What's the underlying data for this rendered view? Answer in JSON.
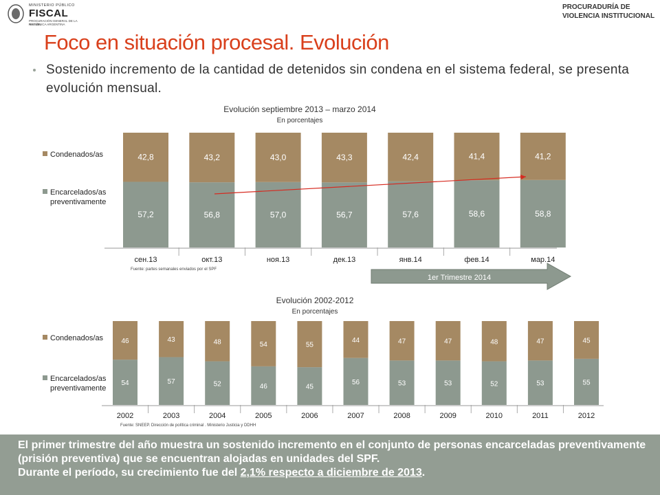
{
  "header": {
    "logo_small": "MINISTERIO PÚBLICO",
    "logo_big": "FISCAL",
    "logo_sub1": "PROCURACIÓN GENERAL DE LA NACIÓN",
    "logo_sub2": "REPÚBLICA ARGENTINA",
    "right_line1": "PROCURADURÍA DE",
    "right_line2": "VIOLENCIA INSTITUCIONAL"
  },
  "title": "Foco en situación procesal. Evolución",
  "bullet": "Sostenido incremento de la cantidad de detenidos sin condena en el sistema federal, se presenta evolución mensual.",
  "arrow_label": "1er Trimestre 2014",
  "source1": "Fuente: partes semanales enviados por el SPF",
  "source2": "Fuente: SNEEP. Dirección de política criminal . Ministerio Justicia y DDHH",
  "banner": {
    "line1": "El primer trimestre del año muestra un sostenido incremento en el conjunto de personas encarceladas preventivamente (prisión preventiva) que se encuentran alojadas en unidades del SPF.",
    "line2_pre": "Durante el período, su crecimiento fue del ",
    "line2_underlined": "2,1% respecto a diciembre de 2013",
    "line2_post": "."
  },
  "colors": {
    "title": "#d9401c",
    "condenados": "#a58963",
    "encarcelados": "#8d998f",
    "trend_line": "#d62a20",
    "arrow": "#8d998f",
    "banner": "#939d93"
  },
  "chart_data": [
    {
      "type": "bar",
      "stacked": true,
      "title": "Evolución septiembre 2013 – marzo 2014",
      "subtitle": "En porcentajes",
      "categories": [
        "сен.13",
        "окт.13",
        "ноя.13",
        "дек.13",
        "янв.14",
        "фев.14",
        "мар.14"
      ],
      "series": [
        {
          "name": "Encarcelados/as preventivamente",
          "values": [
            57.2,
            56.8,
            57.0,
            56.7,
            57.6,
            58.6,
            58.8
          ],
          "labels": [
            "57,2",
            "56,8",
            "57,0",
            "56,7",
            "57,6",
            "58,6",
            "58,8"
          ]
        },
        {
          "name": "Condenados/as",
          "values": [
            42.8,
            43.2,
            43.0,
            43.3,
            42.4,
            41.4,
            41.2
          ],
          "labels": [
            "42,8",
            "43,2",
            "43,0",
            "43,3",
            "42,4",
            "41,4",
            "41,2"
          ]
        }
      ],
      "trend_line": true,
      "legend": "left"
    },
    {
      "type": "bar",
      "stacked": true,
      "title": "Evolución 2002-2012",
      "subtitle": "En porcentajes",
      "categories": [
        "2002",
        "2003",
        "2004",
        "2005",
        "2006",
        "2007",
        "2008",
        "2009",
        "2010",
        "2011",
        "2012"
      ],
      "series": [
        {
          "name": "Encarcelados/as preventivamente",
          "values": [
            54,
            57,
            52,
            46,
            45,
            56,
            53,
            53,
            52,
            53,
            55
          ],
          "labels": [
            "54",
            "57",
            "52",
            "46",
            "45",
            "56",
            "53",
            "53",
            "52",
            "53",
            "55"
          ]
        },
        {
          "name": "Condenados/as",
          "values": [
            46,
            43,
            48,
            54,
            55,
            44,
            47,
            47,
            48,
            47,
            45
          ],
          "labels": [
            "46",
            "43",
            "48",
            "54",
            "55",
            "44",
            "47",
            "47",
            "48",
            "47",
            "45"
          ]
        }
      ],
      "legend": "left"
    }
  ]
}
